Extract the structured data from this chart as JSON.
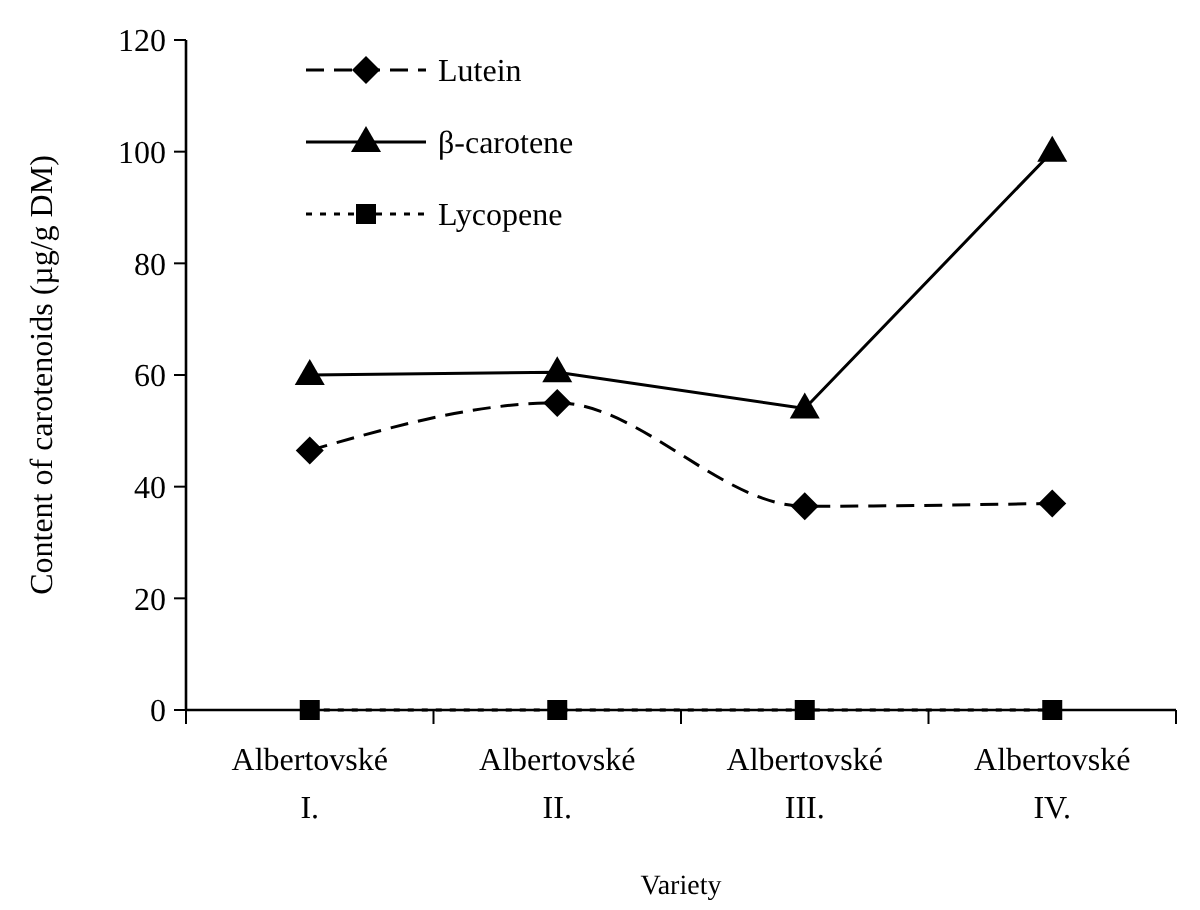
{
  "chart_data": {
    "type": "line",
    "xlabel": "Variety",
    "ylabel": "Content of carotenoids (µg/g DM)",
    "categories": [
      "Albertovské I.",
      "Albertovské II.",
      "Albertovské III.",
      "Albertovské IV."
    ],
    "series": [
      {
        "name": "Lutein",
        "color": "#000000",
        "values": [
          46.5,
          55,
          36.5,
          37
        ],
        "marker": "diamond",
        "line_style": "dashed"
      },
      {
        "name": "β-carotene",
        "color": "#000000",
        "values": [
          60,
          60.5,
          54,
          100
        ],
        "marker": "triangle",
        "line_style": "solid"
      },
      {
        "name": "Lycopene",
        "color": "#000000",
        "values": [
          0,
          0,
          0,
          0
        ],
        "marker": "square",
        "line_style": "dotted"
      }
    ],
    "ylim": [
      0,
      120
    ],
    "yticks": [
      0,
      20,
      40,
      60,
      80,
      100,
      120
    ],
    "grid": false,
    "legend": "top left"
  }
}
